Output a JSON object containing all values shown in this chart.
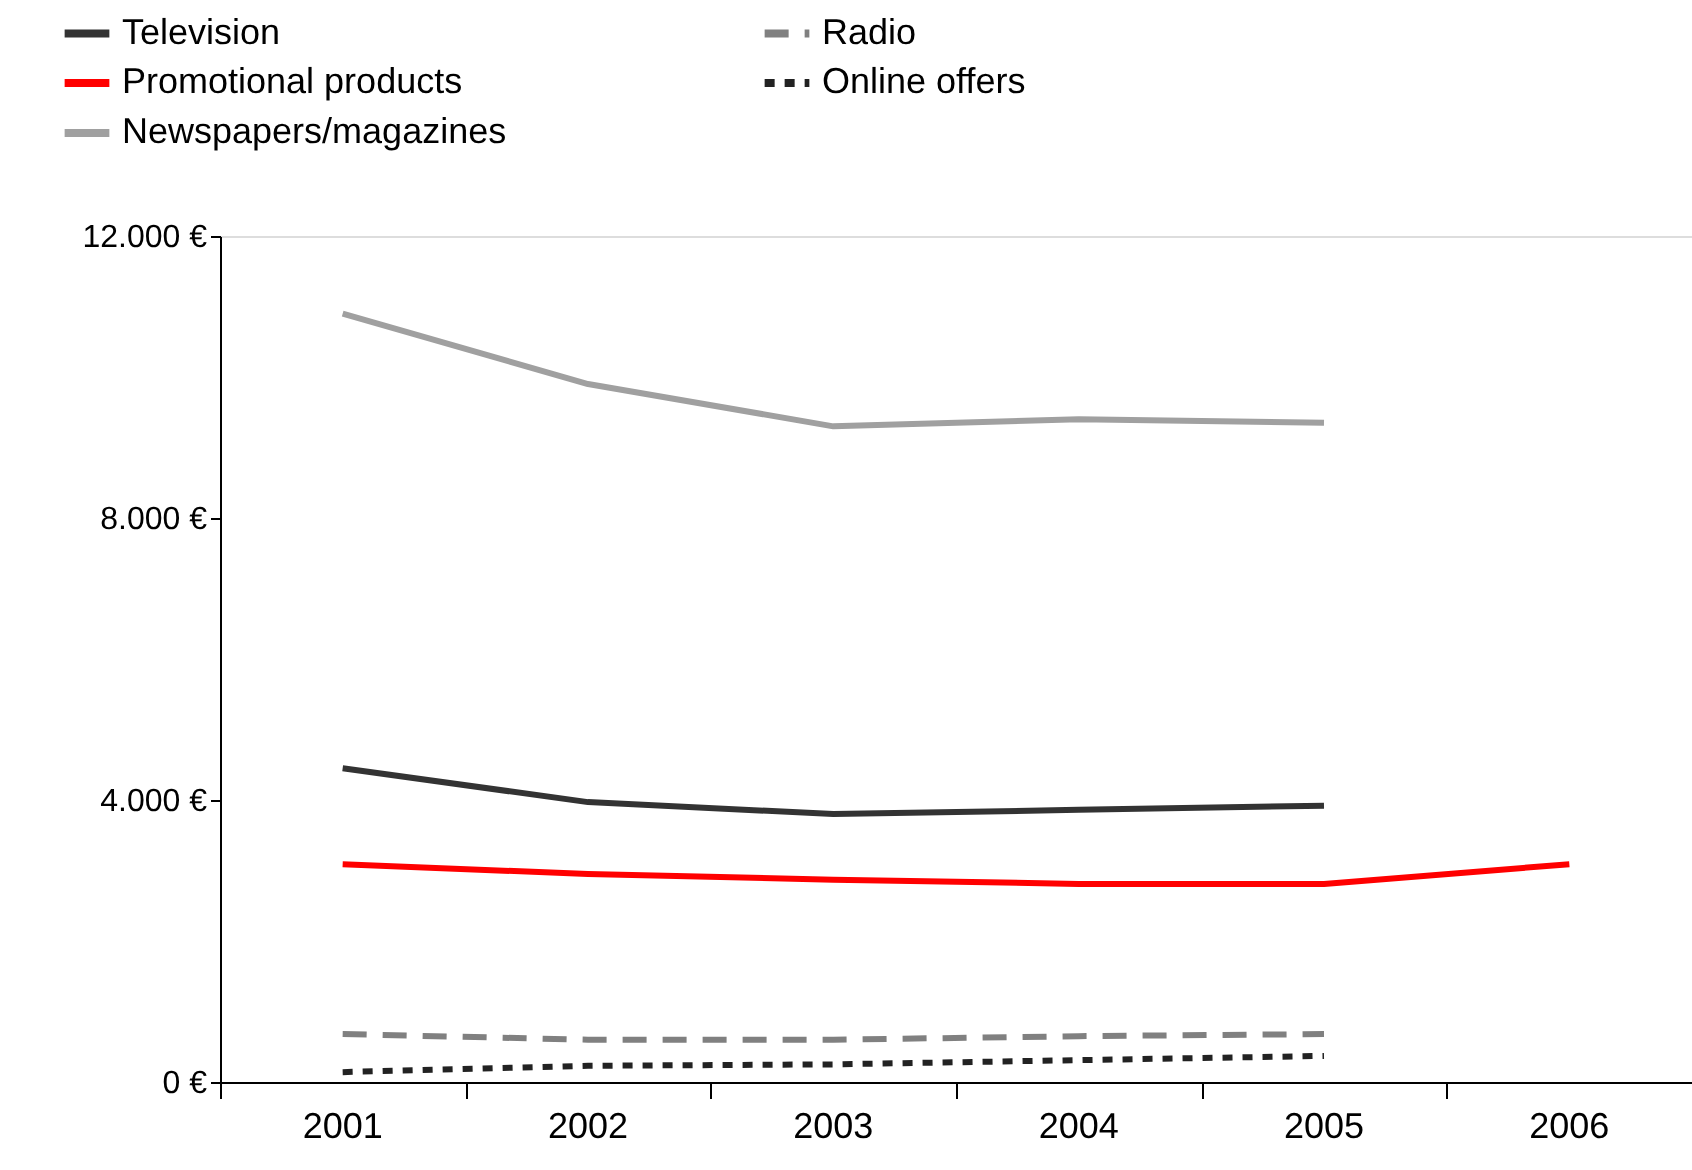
{
  "chart_data": {
    "type": "line",
    "categories": [
      "2001",
      "2002",
      "2003",
      "2004",
      "2005",
      "2006"
    ],
    "series": [
      {
        "name": "Television",
        "color": "#333333",
        "line_style": "solid",
        "values": [
          4450,
          3970,
          3800,
          3860,
          3920,
          null
        ]
      },
      {
        "name": "Promotional products",
        "color": "#ff0000",
        "line_style": "solid",
        "values": [
          3090,
          2950,
          2870,
          2810,
          2810,
          3090
        ]
      },
      {
        "name": "Newspapers/magazines",
        "color": "#a0a0a0",
        "line_style": "solid",
        "values": [
          10900,
          9900,
          9300,
          9400,
          9350,
          null
        ]
      },
      {
        "name": "Radio",
        "color": "#808080",
        "line_style": "dashed",
        "values": [
          680,
          600,
          600,
          650,
          680,
          null
        ]
      },
      {
        "name": "Online offers",
        "color": "#222222",
        "line_style": "dotted",
        "values": [
          140,
          230,
          250,
          310,
          370,
          null
        ]
      }
    ],
    "ylim": [
      0,
      12000
    ],
    "yticks": [
      {
        "value": 0,
        "label": "0 €"
      },
      {
        "value": 4000,
        "label": "4.000 €"
      },
      {
        "value": 8000,
        "label": "8.000 €"
      },
      {
        "value": 12000,
        "label": "12.000 €"
      }
    ],
    "legend": "top left",
    "grid": false,
    "marker": "none"
  }
}
